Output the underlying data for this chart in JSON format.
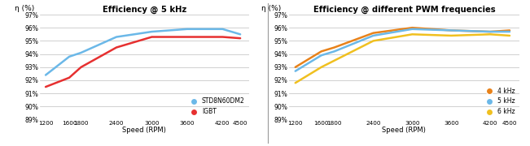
{
  "speed": [
    1200,
    1600,
    1800,
    2400,
    3000,
    3600,
    4200,
    4500
  ],
  "chart1": {
    "title": "Efficiency @ 5 kHz",
    "ylabel": "η (%)",
    "xlabel": "Speed (RPM)",
    "series": {
      "STD8N60DM2": {
        "color": "#6BB8E8",
        "values": [
          92.4,
          93.8,
          94.1,
          95.3,
          95.7,
          95.9,
          95.9,
          95.5
        ]
      },
      "IGBT": {
        "color": "#E63030",
        "values": [
          91.5,
          92.2,
          93.0,
          94.5,
          95.3,
          95.3,
          95.3,
          95.2
        ]
      }
    },
    "ylim": [
      89,
      97
    ],
    "yticks": [
      89,
      90,
      91,
      92,
      93,
      94,
      95,
      96,
      97
    ],
    "ytick_labels": [
      "89%",
      "90%",
      "91%",
      "92%",
      "93%",
      "94%",
      "95%",
      "96%",
      "97%"
    ]
  },
  "chart2": {
    "title": "Efficiency @ different PWM frequencies",
    "ylabel": "η (%)",
    "xlabel": "Speed (RPM)",
    "series": {
      "4 kHz": {
        "color": "#E8821A",
        "values": [
          93.0,
          94.2,
          94.5,
          95.6,
          96.0,
          95.8,
          95.7,
          95.8
        ]
      },
      "5 kHz": {
        "color": "#6BB8E8",
        "values": [
          92.7,
          93.9,
          94.2,
          95.4,
          95.9,
          95.8,
          95.7,
          95.7
        ]
      },
      "6 kHz": {
        "color": "#F0C020",
        "values": [
          91.8,
          93.0,
          93.5,
          95.0,
          95.5,
          95.4,
          95.5,
          95.4
        ]
      }
    },
    "ylim": [
      89,
      97
    ],
    "yticks": [
      89,
      90,
      91,
      92,
      93,
      94,
      95,
      96,
      97
    ],
    "ytick_labels": [
      "89%",
      "90%",
      "91%",
      "92%",
      "93%",
      "94%",
      "95%",
      "96%",
      "97%"
    ]
  },
  "background_color": "#FFFFFF",
  "grid_color": "#BEBEBE",
  "linewidth": 1.8,
  "divider_color": "#999999"
}
